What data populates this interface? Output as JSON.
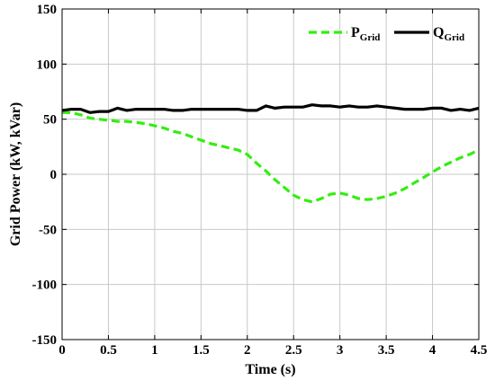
{
  "chart_data": {
    "type": "line",
    "title": "",
    "xlabel": "Time (s)",
    "ylabel": "Grid Power (kW, kVar)",
    "xlim": [
      0,
      4.5
    ],
    "ylim": [
      -150,
      150
    ],
    "xticks": [
      0,
      0.5,
      1,
      1.5,
      2,
      2.5,
      3,
      3.5,
      4,
      4.5
    ],
    "xtick_labels": [
      "0",
      "0.5",
      "1",
      "1.5",
      "2",
      "2.5",
      "3",
      "3.5",
      "4",
      "4.5"
    ],
    "yticks": [
      150,
      100,
      50,
      0,
      -50,
      -100,
      -150
    ],
    "ytick_labels": [
      "150",
      "100",
      "50",
      "0",
      "-50",
      "-100",
      "-150"
    ],
    "grid": true,
    "legend_position": "top-right",
    "series": [
      {
        "name": "P",
        "name_sub": "Grid",
        "color": "#33ee11",
        "style": "dashed",
        "x": [
          0,
          0.1,
          0.2,
          0.3,
          0.4,
          0.5,
          0.6,
          0.7,
          0.8,
          0.9,
          1.0,
          1.1,
          1.2,
          1.3,
          1.4,
          1.5,
          1.6,
          1.7,
          1.8,
          1.9,
          2.0,
          2.1,
          2.2,
          2.3,
          2.4,
          2.5,
          2.6,
          2.7,
          2.8,
          2.9,
          3.0,
          3.1,
          3.2,
          3.3,
          3.4,
          3.5,
          3.6,
          3.7,
          3.8,
          3.9,
          4.0,
          4.1,
          4.2,
          4.3,
          4.4,
          4.5
        ],
        "y": [
          56,
          56,
          54,
          51,
          50,
          49,
          48,
          48,
          47,
          46,
          44,
          42,
          39,
          37,
          34,
          31,
          28,
          26,
          24,
          22,
          18,
          10,
          3,
          -5,
          -12,
          -19,
          -23,
          -25,
          -22,
          -18,
          -17,
          -19,
          -22,
          -23,
          -22,
          -20,
          -17,
          -13,
          -8,
          -3,
          2,
          7,
          11,
          15,
          18,
          22
        ]
      },
      {
        "name": "Q",
        "name_sub": "Grid",
        "color": "#000000",
        "style": "solid",
        "x": [
          0,
          0.1,
          0.2,
          0.3,
          0.4,
          0.5,
          0.6,
          0.7,
          0.8,
          0.9,
          1.0,
          1.1,
          1.2,
          1.3,
          1.4,
          1.5,
          1.6,
          1.7,
          1.8,
          1.9,
          2.0,
          2.1,
          2.2,
          2.3,
          2.4,
          2.5,
          2.6,
          2.7,
          2.8,
          2.9,
          3.0,
          3.1,
          3.2,
          3.3,
          3.4,
          3.5,
          3.6,
          3.7,
          3.8,
          3.9,
          4.0,
          4.1,
          4.2,
          4.3,
          4.4,
          4.5
        ],
        "y": [
          58,
          59,
          59,
          56,
          57,
          57,
          60,
          58,
          59,
          59,
          59,
          59,
          58,
          58,
          59,
          59,
          59,
          59,
          59,
          59,
          58,
          58,
          62,
          60,
          61,
          61,
          61,
          63,
          62,
          62,
          61,
          62,
          61,
          61,
          62,
          61,
          60,
          59,
          59,
          59,
          60,
          60,
          58,
          59,
          58,
          60
        ]
      }
    ]
  }
}
